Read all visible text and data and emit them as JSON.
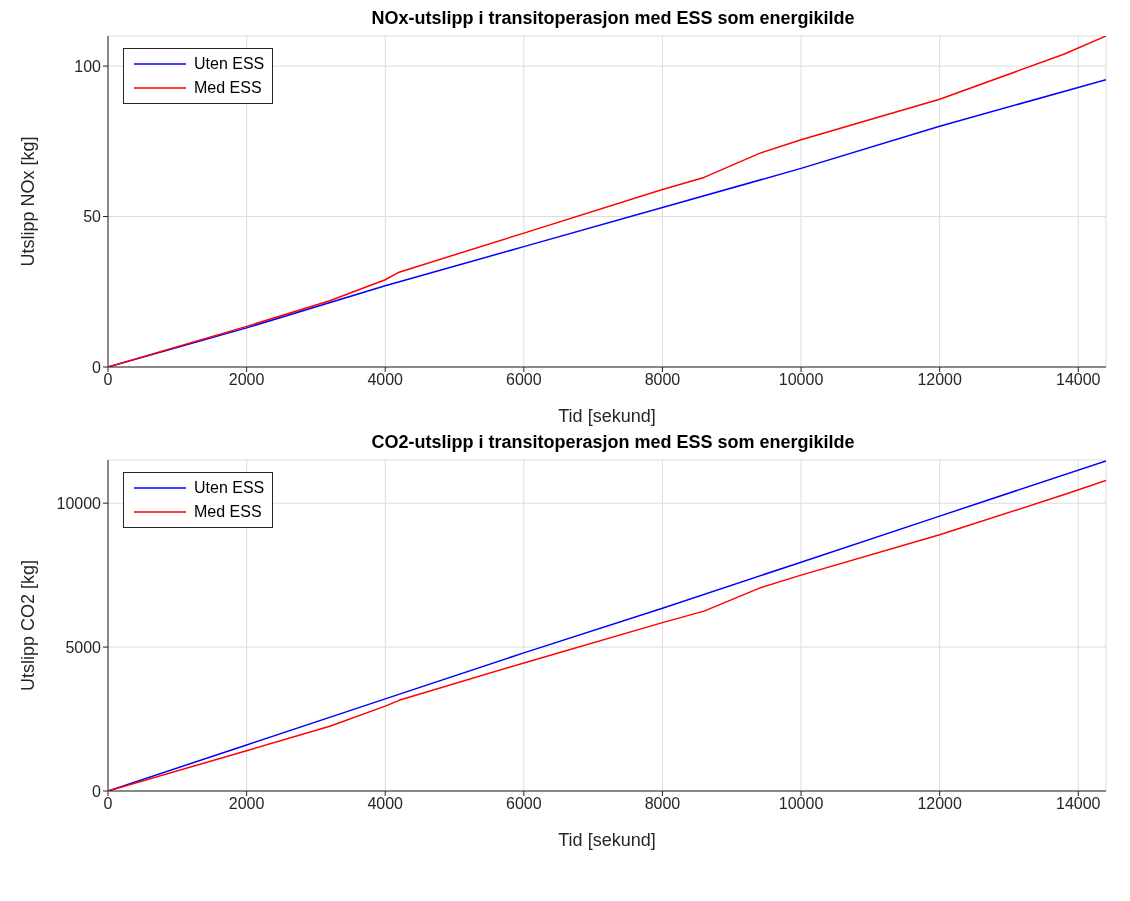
{
  "chart_data": [
    {
      "type": "line",
      "title": "NOx-utslipp i transitoperasjon med ESS som energikilde",
      "xlabel": "Tid [sekund]",
      "ylabel": "Utslipp NOx [kg]",
      "xlim": [
        0,
        14400
      ],
      "xticks": [
        0,
        2000,
        4000,
        6000,
        8000,
        10000,
        12000,
        14000
      ],
      "ylim": [
        0,
        110
      ],
      "yticks": [
        0,
        50,
        100
      ],
      "grid": true,
      "legend": "top left",
      "line_style": "solid",
      "marker": "none",
      "series": [
        {
          "name": "Uten ESS",
          "color": "#0000ff",
          "x": [
            0,
            2000,
            4000,
            6000,
            8000,
            10000,
            12000,
            14400
          ],
          "values": [
            0,
            13,
            27,
            40,
            53,
            66,
            80,
            95.5
          ]
        },
        {
          "name": "Med ESS",
          "color": "#ff0000",
          "x": [
            0,
            2000,
            3200,
            4000,
            4200,
            6000,
            8000,
            8600,
            9400,
            10000,
            12000,
            13800,
            14400
          ],
          "values": [
            0,
            13.5,
            22,
            29,
            31.5,
            44.5,
            59,
            63,
            71,
            75.5,
            89,
            104,
            110
          ]
        }
      ]
    },
    {
      "type": "line",
      "title": "CO2-utslipp i transitoperasjon med ESS som energikilde",
      "xlabel": "Tid [sekund]",
      "ylabel": "Utslipp CO2 [kg]",
      "xlim": [
        0,
        14400
      ],
      "xticks": [
        0,
        2000,
        4000,
        6000,
        8000,
        10000,
        12000,
        14000
      ],
      "ylim": [
        0,
        11500
      ],
      "yticks": [
        0,
        5000,
        10000
      ],
      "grid": true,
      "legend": "top left",
      "line_style": "solid",
      "marker": "none",
      "series": [
        {
          "name": "Uten ESS",
          "color": "#0000ff",
          "x": [
            0,
            2000,
            4000,
            6000,
            8000,
            10000,
            12000,
            14400
          ],
          "values": [
            0,
            1600,
            3200,
            4800,
            6350,
            7950,
            9550,
            11470
          ]
        },
        {
          "name": "Med ESS",
          "color": "#ff0000",
          "x": [
            0,
            2000,
            3200,
            4000,
            4200,
            6000,
            8000,
            8600,
            9400,
            10000,
            12000,
            13800,
            14400
          ],
          "values": [
            0,
            1400,
            2250,
            2950,
            3150,
            4450,
            5850,
            6250,
            7050,
            7500,
            8900,
            10300,
            10790
          ]
        }
      ]
    }
  ]
}
